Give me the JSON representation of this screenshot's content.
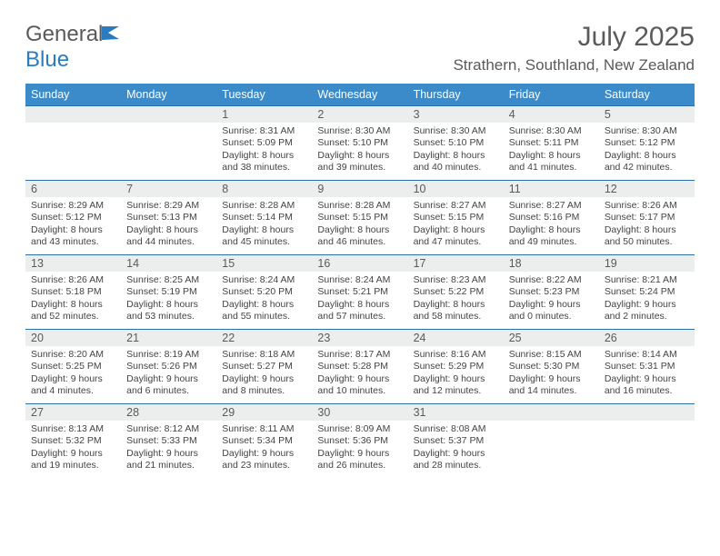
{
  "logo": {
    "name_part1": "General",
    "name_part2": "Blue"
  },
  "title": "July 2025",
  "location": "Strathern, Southland, New Zealand",
  "colors": {
    "header_bg": "#3b8bcb",
    "header_text": "#ffffff",
    "border": "#2b6fa8",
    "daynum_bg": "#eceded",
    "text": "#5a5a5a",
    "logo_blue": "#2b7bbf"
  },
  "days_of_week": [
    "Sunday",
    "Monday",
    "Tuesday",
    "Wednesday",
    "Thursday",
    "Friday",
    "Saturday"
  ],
  "weeks": [
    [
      null,
      null,
      {
        "n": "1",
        "sunrise": "8:31 AM",
        "sunset": "5:09 PM",
        "dl": "8 hours and 38 minutes."
      },
      {
        "n": "2",
        "sunrise": "8:30 AM",
        "sunset": "5:10 PM",
        "dl": "8 hours and 39 minutes."
      },
      {
        "n": "3",
        "sunrise": "8:30 AM",
        "sunset": "5:10 PM",
        "dl": "8 hours and 40 minutes."
      },
      {
        "n": "4",
        "sunrise": "8:30 AM",
        "sunset": "5:11 PM",
        "dl": "8 hours and 41 minutes."
      },
      {
        "n": "5",
        "sunrise": "8:30 AM",
        "sunset": "5:12 PM",
        "dl": "8 hours and 42 minutes."
      }
    ],
    [
      {
        "n": "6",
        "sunrise": "8:29 AM",
        "sunset": "5:12 PM",
        "dl": "8 hours and 43 minutes."
      },
      {
        "n": "7",
        "sunrise": "8:29 AM",
        "sunset": "5:13 PM",
        "dl": "8 hours and 44 minutes."
      },
      {
        "n": "8",
        "sunrise": "8:28 AM",
        "sunset": "5:14 PM",
        "dl": "8 hours and 45 minutes."
      },
      {
        "n": "9",
        "sunrise": "8:28 AM",
        "sunset": "5:15 PM",
        "dl": "8 hours and 46 minutes."
      },
      {
        "n": "10",
        "sunrise": "8:27 AM",
        "sunset": "5:15 PM",
        "dl": "8 hours and 47 minutes."
      },
      {
        "n": "11",
        "sunrise": "8:27 AM",
        "sunset": "5:16 PM",
        "dl": "8 hours and 49 minutes."
      },
      {
        "n": "12",
        "sunrise": "8:26 AM",
        "sunset": "5:17 PM",
        "dl": "8 hours and 50 minutes."
      }
    ],
    [
      {
        "n": "13",
        "sunrise": "8:26 AM",
        "sunset": "5:18 PM",
        "dl": "8 hours and 52 minutes."
      },
      {
        "n": "14",
        "sunrise": "8:25 AM",
        "sunset": "5:19 PM",
        "dl": "8 hours and 53 minutes."
      },
      {
        "n": "15",
        "sunrise": "8:24 AM",
        "sunset": "5:20 PM",
        "dl": "8 hours and 55 minutes."
      },
      {
        "n": "16",
        "sunrise": "8:24 AM",
        "sunset": "5:21 PM",
        "dl": "8 hours and 57 minutes."
      },
      {
        "n": "17",
        "sunrise": "8:23 AM",
        "sunset": "5:22 PM",
        "dl": "8 hours and 58 minutes."
      },
      {
        "n": "18",
        "sunrise": "8:22 AM",
        "sunset": "5:23 PM",
        "dl": "9 hours and 0 minutes."
      },
      {
        "n": "19",
        "sunrise": "8:21 AM",
        "sunset": "5:24 PM",
        "dl": "9 hours and 2 minutes."
      }
    ],
    [
      {
        "n": "20",
        "sunrise": "8:20 AM",
        "sunset": "5:25 PM",
        "dl": "9 hours and 4 minutes."
      },
      {
        "n": "21",
        "sunrise": "8:19 AM",
        "sunset": "5:26 PM",
        "dl": "9 hours and 6 minutes."
      },
      {
        "n": "22",
        "sunrise": "8:18 AM",
        "sunset": "5:27 PM",
        "dl": "9 hours and 8 minutes."
      },
      {
        "n": "23",
        "sunrise": "8:17 AM",
        "sunset": "5:28 PM",
        "dl": "9 hours and 10 minutes."
      },
      {
        "n": "24",
        "sunrise": "8:16 AM",
        "sunset": "5:29 PM",
        "dl": "9 hours and 12 minutes."
      },
      {
        "n": "25",
        "sunrise": "8:15 AM",
        "sunset": "5:30 PM",
        "dl": "9 hours and 14 minutes."
      },
      {
        "n": "26",
        "sunrise": "8:14 AM",
        "sunset": "5:31 PM",
        "dl": "9 hours and 16 minutes."
      }
    ],
    [
      {
        "n": "27",
        "sunrise": "8:13 AM",
        "sunset": "5:32 PM",
        "dl": "9 hours and 19 minutes."
      },
      {
        "n": "28",
        "sunrise": "8:12 AM",
        "sunset": "5:33 PM",
        "dl": "9 hours and 21 minutes."
      },
      {
        "n": "29",
        "sunrise": "8:11 AM",
        "sunset": "5:34 PM",
        "dl": "9 hours and 23 minutes."
      },
      {
        "n": "30",
        "sunrise": "8:09 AM",
        "sunset": "5:36 PM",
        "dl": "9 hours and 26 minutes."
      },
      {
        "n": "31",
        "sunrise": "8:08 AM",
        "sunset": "5:37 PM",
        "dl": "9 hours and 28 minutes."
      },
      null,
      null
    ]
  ]
}
